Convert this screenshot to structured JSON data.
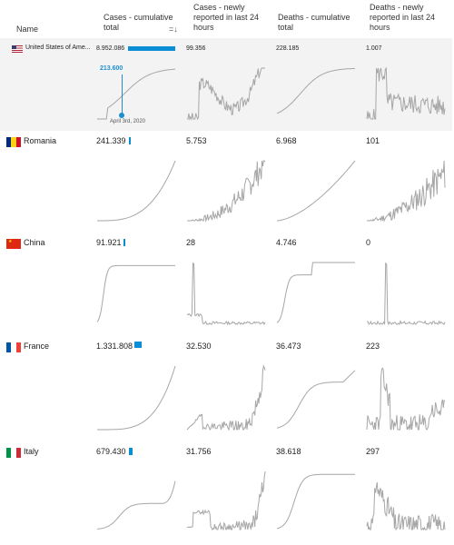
{
  "header": {
    "name": "Name",
    "cases_total": "Cases - cumulative total",
    "cases_24h": "Cases - newly reported in last 24 hours",
    "deaths_total": "Deaths - cumulative total",
    "deaths_24h": "Deaths - newly reported in last 24 hours",
    "sort_icon": "sort-descending-icon"
  },
  "colors": {
    "bar": "#0a8fd6",
    "line": "#a6a6a6",
    "highlight": "#1b8fd0",
    "row_shade": "#f3f3f3"
  },
  "rows": [
    {
      "name": "United States of Ame...",
      "flag": "us-flag",
      "cases_total": "8.952.086",
      "cases_24h": "99.356",
      "deaths_total": "228.185",
      "deaths_24h": "1.007",
      "bar_fraction": 1.0,
      "annotation": {
        "value": "213.600",
        "date": "April 3rd, 2020"
      }
    },
    {
      "name": "Romania",
      "flag": "romania-flag",
      "cases_total": "241.339",
      "cases_24h": "5.753",
      "deaths_total": "6.968",
      "deaths_24h": "101",
      "bar_fraction": 0.027
    },
    {
      "name": "China",
      "flag": "china-flag",
      "cases_total": "91.921",
      "cases_24h": "28",
      "deaths_total": "4.746",
      "deaths_24h": "0",
      "bar_fraction": 0.01
    },
    {
      "name": "France",
      "flag": "france-flag",
      "cases_total": "1.331.808",
      "cases_24h": "32.530",
      "deaths_total": "36.473",
      "deaths_24h": "223",
      "bar_fraction": 0.149
    },
    {
      "name": "Italy",
      "flag": "italy-flag",
      "cases_total": "679.430",
      "cases_24h": "31.756",
      "deaths_total": "38.618",
      "deaths_24h": "297",
      "bar_fraction": 0.076
    }
  ]
}
